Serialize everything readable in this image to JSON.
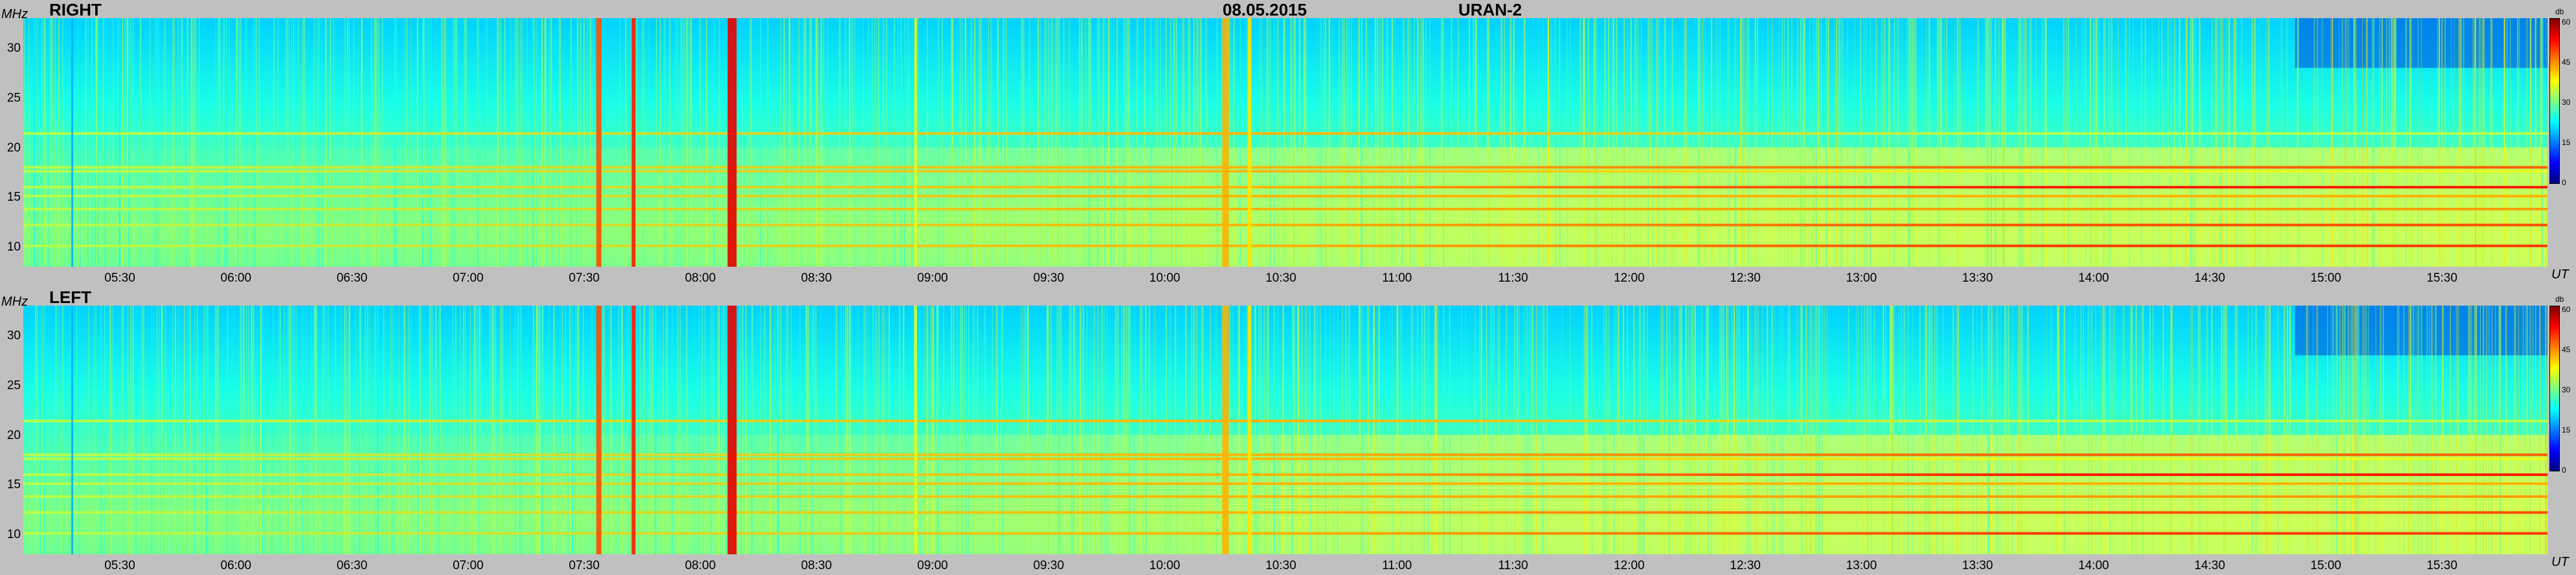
{
  "header": {
    "left_label": "RIGHT",
    "date": "08.05.2015",
    "instrument": "URAN-2"
  },
  "colorbar": {
    "unit": "db",
    "ticks": [
      "60",
      "45",
      "30",
      "15",
      "0"
    ],
    "colors": [
      "#00007f",
      "#0000ff",
      "#0080ff",
      "#00ffff",
      "#80ff80",
      "#ffff00",
      "#ff8000",
      "#ff0000",
      "#7f0000"
    ]
  },
  "chart_data": [
    {
      "type": "heatmap",
      "title": "RIGHT",
      "xlabel": "UT",
      "ylabel": "MHz",
      "x_ticks": [
        "05:30",
        "06:00",
        "06:30",
        "07:00",
        "07:30",
        "08:00",
        "08:30",
        "09:00",
        "09:30",
        "10:00",
        "10:30",
        "11:00",
        "11:30",
        "12:00",
        "12:30",
        "13:00",
        "13:30",
        "14:00",
        "14:30",
        "15:00",
        "15:30"
      ],
      "y_ticks": [
        "30",
        "25",
        "20",
        "15",
        "10"
      ],
      "ylim": [
        8,
        33
      ],
      "z_range": [
        0,
        60
      ]
    },
    {
      "type": "heatmap",
      "title": "LEFT",
      "xlabel": "UT",
      "ylabel": "MHz",
      "x_ticks": [
        "05:30",
        "06:00",
        "06:30",
        "07:00",
        "07:30",
        "08:00",
        "08:30",
        "09:00",
        "09:30",
        "10:00",
        "10:30",
        "11:00",
        "11:30",
        "12:00",
        "12:30",
        "13:00",
        "13:30",
        "14:00",
        "14:30",
        "15:00",
        "15:30"
      ],
      "y_ticks": [
        "30",
        "25",
        "20",
        "15",
        "10"
      ],
      "ylim": [
        8,
        33
      ],
      "z_range": [
        0,
        60
      ]
    }
  ]
}
